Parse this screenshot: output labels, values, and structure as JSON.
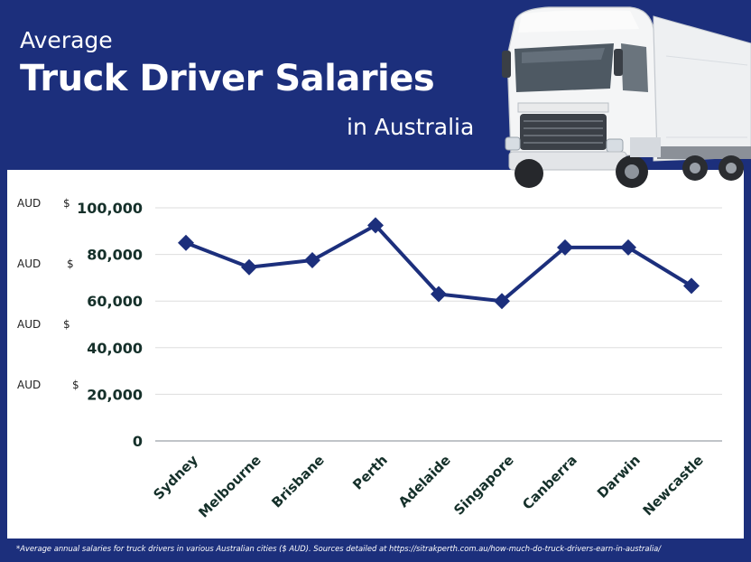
{
  "header": {
    "title_line1": "Average",
    "title_line2": "Truck Driver Salaries",
    "title_line3": "in Australia"
  },
  "footnote": "*Average annual salaries for truck drivers in various Australian cities ($ AUD). Sources detailed at https://sitrakperth.com.au/how-much-do-truck-drivers-earn-in-australia/",
  "colors": {
    "brand_navy": "#1c2f7c",
    "line": "#1c2f7c",
    "tick_label": "#15302a",
    "grid": "#dddddd"
  },
  "illustration": "truck-image",
  "currency_labels": [
    {
      "unit": "AUD",
      "symbol": "$"
    },
    {
      "unit": "AUD",
      "symbol": "$"
    },
    {
      "unit": "AUD",
      "symbol": "$"
    },
    {
      "unit": "AUD",
      "symbol": "$"
    }
  ],
  "chart_data": {
    "type": "line",
    "categories": [
      "Sydney",
      "Melbourne",
      "Brisbane",
      "Perth",
      "Adelaide",
      "Singapore",
      "Canberra",
      "Darwin",
      "Newcastle"
    ],
    "values": [
      85000,
      74500,
      77500,
      92500,
      63000,
      60000,
      83000,
      83000,
      66500
    ],
    "ylim": [
      0,
      100000
    ],
    "yticks": [
      0,
      20000,
      40000,
      60000,
      80000,
      100000
    ],
    "ytick_labels": [
      "0",
      "20,000",
      "40,000",
      "60,000",
      "80,000",
      "100,000"
    ],
    "grid": true,
    "marker": "diamond"
  }
}
